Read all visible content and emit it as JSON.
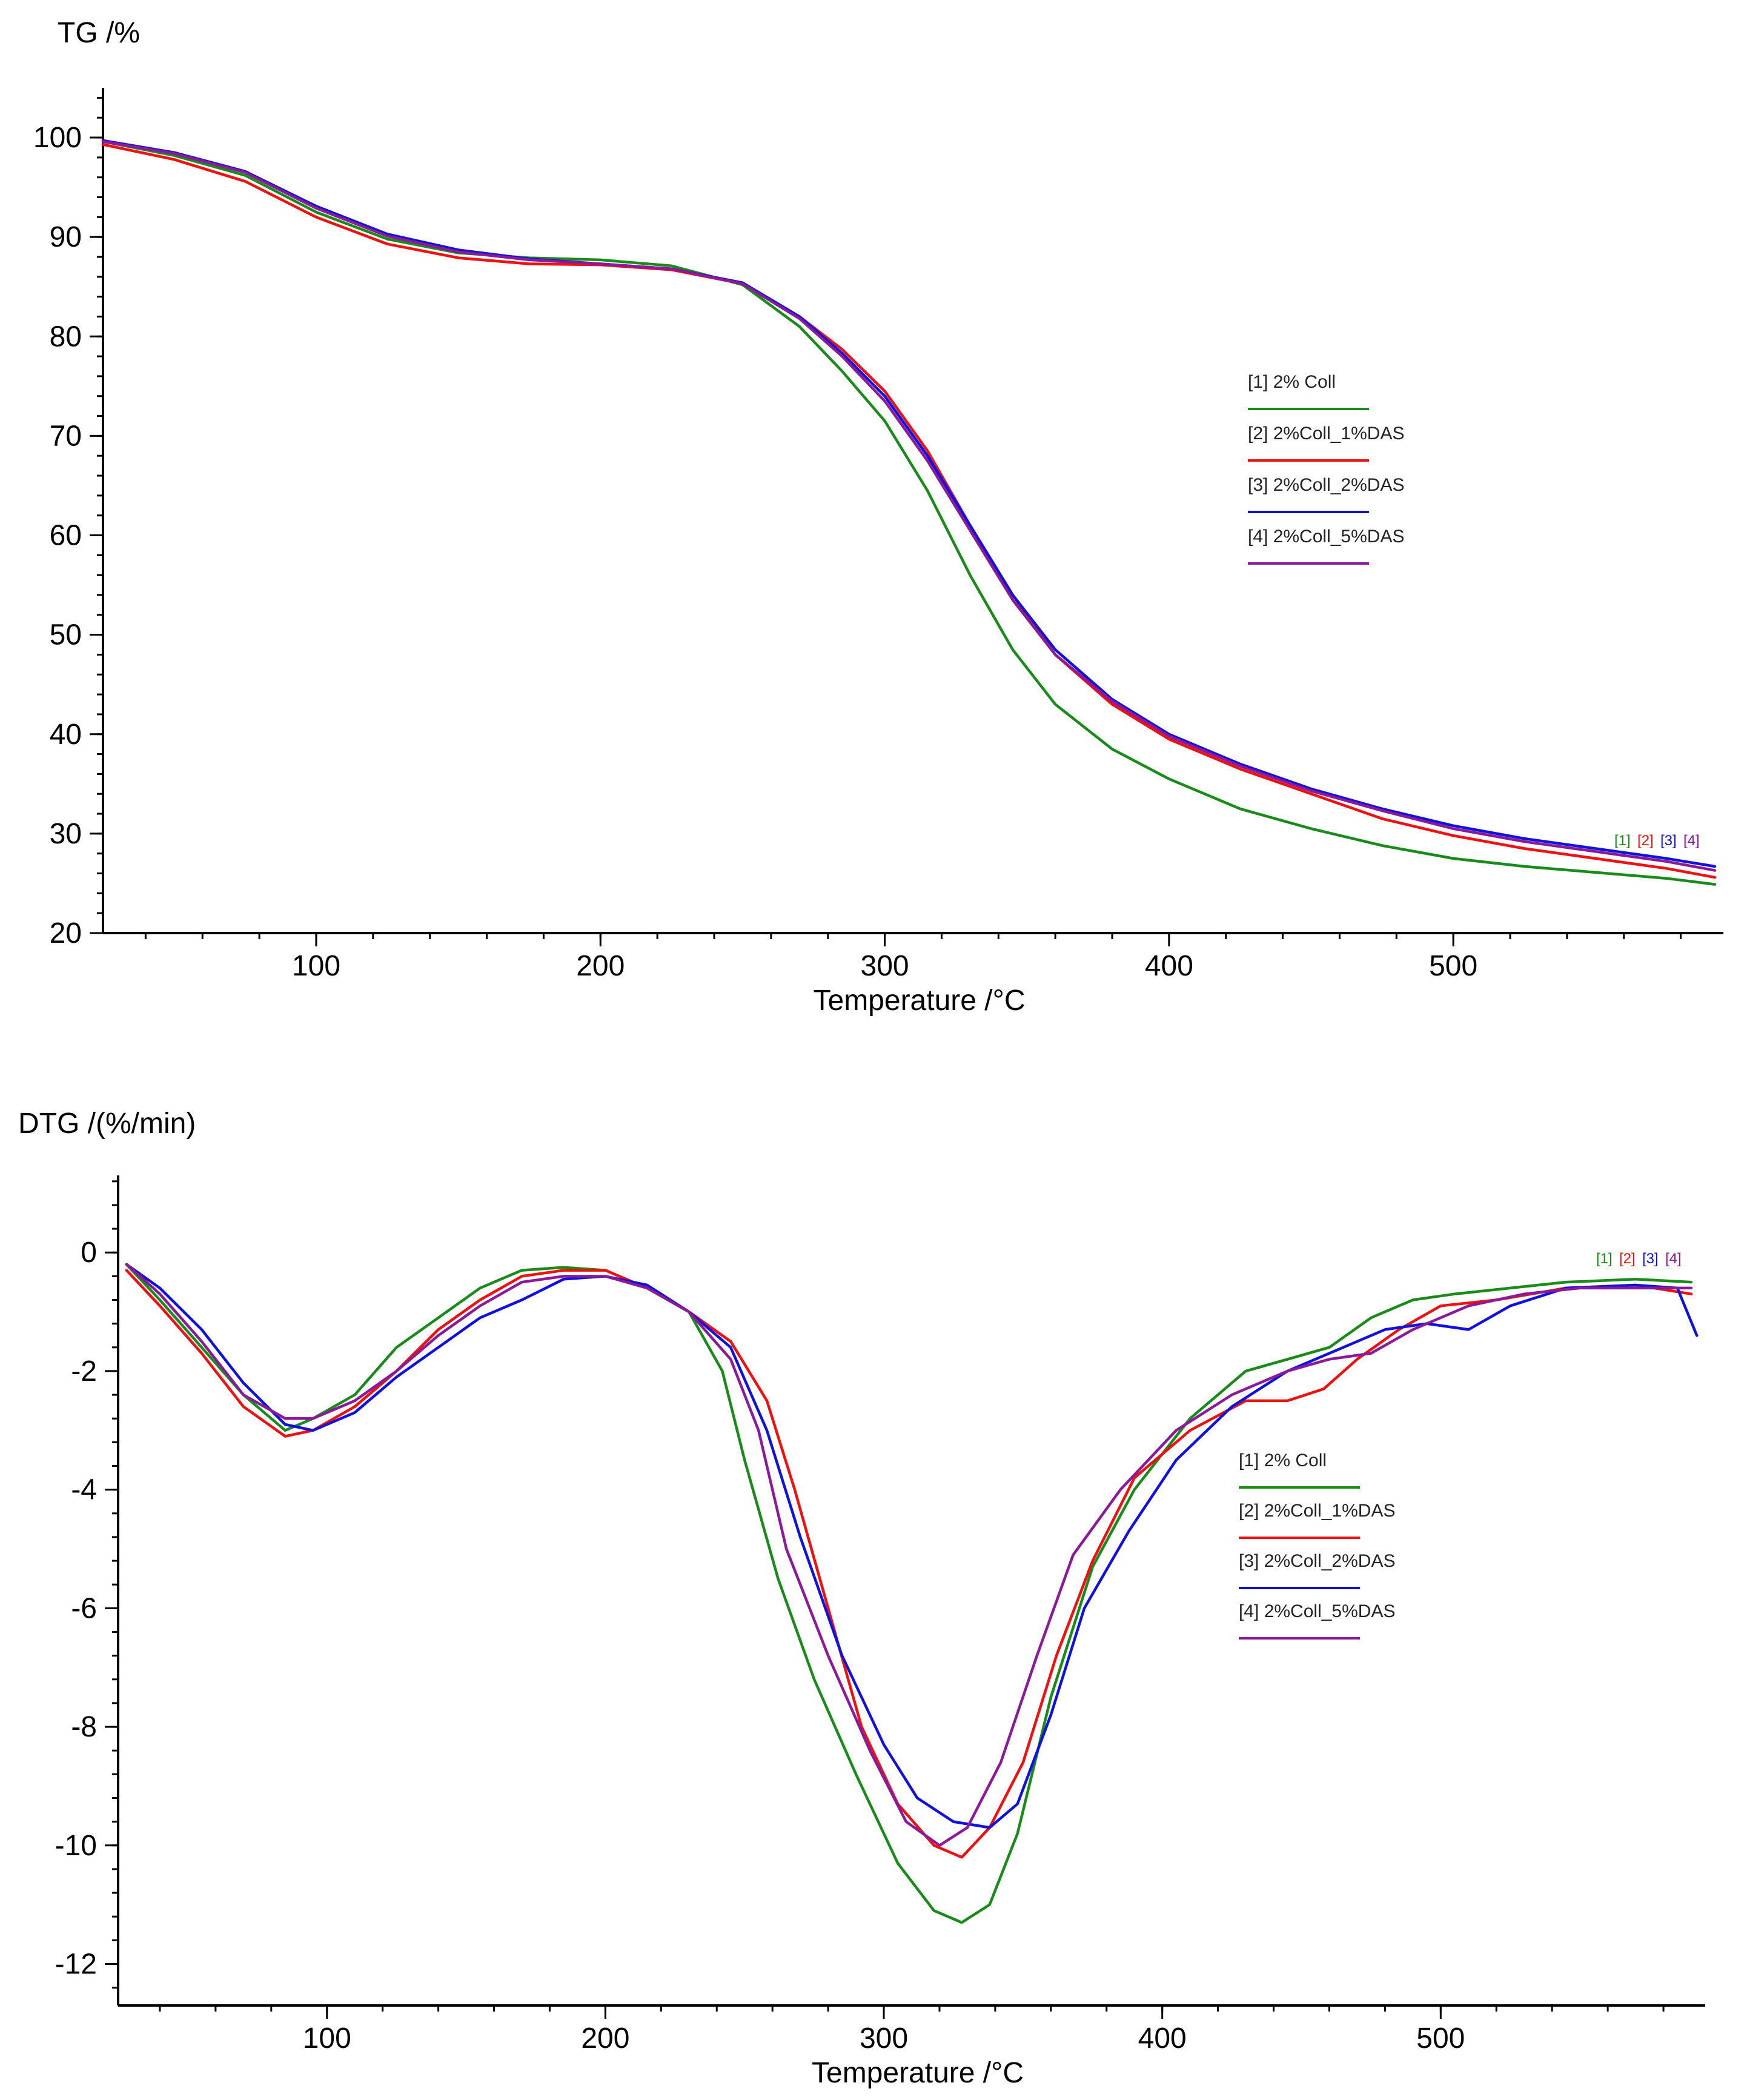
{
  "chart_data": [
    {
      "id": "tg",
      "type": "line",
      "ylabel": "TG /%",
      "xlabel": "Temperature /°C",
      "xlim": [
        25,
        595
      ],
      "ylim": [
        20,
        105
      ],
      "x_ticks": [
        100,
        200,
        300,
        400,
        500
      ],
      "y_ticks": [
        20,
        30,
        40,
        50,
        60,
        70,
        80,
        90,
        100
      ],
      "legend_placement": "center-right",
      "series": [
        {
          "name": "[1] 2% Coll",
          "tag": "[1]",
          "color": "#1a8a1a",
          "points": [
            [
              25,
              99.6
            ],
            [
              50,
              98.2
            ],
            [
              75,
              96.2
            ],
            [
              100,
              92.5
            ],
            [
              125,
              89.8
            ],
            [
              150,
              88.4
            ],
            [
              175,
              87.9
            ],
            [
              200,
              87.7
            ],
            [
              225,
              87.1
            ],
            [
              250,
              85.2
            ],
            [
              270,
              81
            ],
            [
              285,
              76.5
            ],
            [
              300,
              71.5
            ],
            [
              315,
              64.5
            ],
            [
              330,
              56
            ],
            [
              345,
              48.5
            ],
            [
              360,
              43
            ],
            [
              380,
              38.5
            ],
            [
              400,
              35.5
            ],
            [
              425,
              32.5
            ],
            [
              450,
              30.5
            ],
            [
              475,
              28.8
            ],
            [
              500,
              27.5
            ],
            [
              525,
              26.7
            ],
            [
              550,
              26.1
            ],
            [
              575,
              25.5
            ],
            [
              592,
              24.9
            ]
          ]
        },
        {
          "name": "[2] 2%Coll_1%DAS",
          "tag": "[2]",
          "color": "#ee1111",
          "points": [
            [
              25,
              99.3
            ],
            [
              50,
              97.8
            ],
            [
              75,
              95.6
            ],
            [
              100,
              92
            ],
            [
              125,
              89.3
            ],
            [
              150,
              87.9
            ],
            [
              175,
              87.3
            ],
            [
              200,
              87.2
            ],
            [
              225,
              86.7
            ],
            [
              250,
              85.3
            ],
            [
              270,
              82
            ],
            [
              285,
              78.7
            ],
            [
              300,
              74.5
            ],
            [
              315,
              68.5
            ],
            [
              330,
              61
            ],
            [
              345,
              54
            ],
            [
              360,
              48
            ],
            [
              380,
              43
            ],
            [
              400,
              39.5
            ],
            [
              425,
              36.5
            ],
            [
              450,
              34
            ],
            [
              475,
              31.5
            ],
            [
              500,
              29.8
            ],
            [
              525,
              28.5
            ],
            [
              550,
              27.5
            ],
            [
              575,
              26.5
            ],
            [
              592,
              25.6
            ]
          ]
        },
        {
          "name": "[3] 2%Coll_2%DAS",
          "tag": "[3]",
          "color": "#1111dd",
          "points": [
            [
              25,
              99.7
            ],
            [
              50,
              98.5
            ],
            [
              75,
              96.6
            ],
            [
              100,
              93.1
            ],
            [
              125,
              90.3
            ],
            [
              150,
              88.7
            ],
            [
              175,
              87.8
            ],
            [
              200,
              87.3
            ],
            [
              225,
              86.8
            ],
            [
              250,
              85.4
            ],
            [
              270,
              82
            ],
            [
              285,
              78.3
            ],
            [
              300,
              74
            ],
            [
              315,
              68
            ],
            [
              330,
              61
            ],
            [
              345,
              54
            ],
            [
              360,
              48.5
            ],
            [
              380,
              43.5
            ],
            [
              400,
              40
            ],
            [
              425,
              37
            ],
            [
              450,
              34.5
            ],
            [
              475,
              32.5
            ],
            [
              500,
              30.8
            ],
            [
              525,
              29.5
            ],
            [
              550,
              28.5
            ],
            [
              575,
              27.5
            ],
            [
              592,
              26.7
            ]
          ]
        },
        {
          "name": "[4] 2%Coll_5%DAS",
          "tag": "[4]",
          "color": "#8a1a9a",
          "points": [
            [
              25,
              99.6
            ],
            [
              50,
              98.4
            ],
            [
              75,
              96.5
            ],
            [
              100,
              92.9
            ],
            [
              125,
              90.1
            ],
            [
              150,
              88.5
            ],
            [
              175,
              87.7
            ],
            [
              200,
              87.3
            ],
            [
              225,
              86.8
            ],
            [
              250,
              85.3
            ],
            [
              270,
              81.8
            ],
            [
              285,
              78
            ],
            [
              300,
              73.5
            ],
            [
              315,
              67.5
            ],
            [
              330,
              60.5
            ],
            [
              345,
              53.5
            ],
            [
              360,
              48
            ],
            [
              380,
              43.3
            ],
            [
              400,
              39.8
            ],
            [
              425,
              36.8
            ],
            [
              450,
              34.3
            ],
            [
              475,
              32.3
            ],
            [
              500,
              30.5
            ],
            [
              525,
              29.2
            ],
            [
              550,
              28.2
            ],
            [
              575,
              27.2
            ],
            [
              592,
              26.3
            ]
          ]
        }
      ]
    },
    {
      "id": "dtg",
      "type": "line",
      "ylabel": "DTG /(%/min)",
      "xlabel": "Temperature /°C",
      "xlim": [
        25,
        595
      ],
      "ylim": [
        -12.7,
        1.3
      ],
      "x_ticks": [
        100,
        200,
        300,
        400,
        500
      ],
      "y_ticks": [
        0,
        -2,
        -4,
        -6,
        -8,
        -10,
        -12
      ],
      "legend_placement": "center-right",
      "series": [
        {
          "name": "[1] 2% Coll",
          "tag": "[1]",
          "color": "#1a8a1a",
          "points": [
            [
              28,
              -0.2
            ],
            [
              40,
              -0.8
            ],
            [
              55,
              -1.6
            ],
            [
              70,
              -2.4
            ],
            [
              85,
              -3
            ],
            [
              95,
              -2.8
            ],
            [
              110,
              -2.4
            ],
            [
              125,
              -1.6
            ],
            [
              140,
              -1.1
            ],
            [
              155,
              -0.6
            ],
            [
              170,
              -0.3
            ],
            [
              185,
              -0.25
            ],
            [
              200,
              -0.3
            ],
            [
              215,
              -0.6
            ],
            [
              230,
              -1
            ],
            [
              242,
              -2
            ],
            [
              250,
              -3.5
            ],
            [
              262,
              -5.5
            ],
            [
              275,
              -7.2
            ],
            [
              290,
              -8.8
            ],
            [
              305,
              -10.3
            ],
            [
              318,
              -11.1
            ],
            [
              328,
              -11.3
            ],
            [
              338,
              -11
            ],
            [
              348,
              -9.8
            ],
            [
              360,
              -7.5
            ],
            [
              375,
              -5.3
            ],
            [
              390,
              -4
            ],
            [
              410,
              -2.8
            ],
            [
              430,
              -2
            ],
            [
              445,
              -1.8
            ],
            [
              460,
              -1.6
            ],
            [
              475,
              -1.1
            ],
            [
              490,
              -0.8
            ],
            [
              505,
              -0.7
            ],
            [
              525,
              -0.6
            ],
            [
              545,
              -0.5
            ],
            [
              570,
              -0.45
            ],
            [
              590,
              -0.5
            ]
          ]
        },
        {
          "name": "[2] 2%Coll_1%DAS",
          "tag": "[2]",
          "color": "#ee1111",
          "points": [
            [
              28,
              -0.3
            ],
            [
              40,
              -0.9
            ],
            [
              55,
              -1.7
            ],
            [
              70,
              -2.6
            ],
            [
              85,
              -3.1
            ],
            [
              95,
              -3
            ],
            [
              110,
              -2.6
            ],
            [
              125,
              -2
            ],
            [
              140,
              -1.3
            ],
            [
              155,
              -0.8
            ],
            [
              170,
              -0.4
            ],
            [
              185,
              -0.3
            ],
            [
              200,
              -0.3
            ],
            [
              215,
              -0.6
            ],
            [
              230,
              -1
            ],
            [
              245,
              -1.5
            ],
            [
              258,
              -2.5
            ],
            [
              268,
              -4
            ],
            [
              280,
              -6
            ],
            [
              292,
              -8
            ],
            [
              305,
              -9.3
            ],
            [
              318,
              -10
            ],
            [
              328,
              -10.2
            ],
            [
              338,
              -9.7
            ],
            [
              350,
              -8.6
            ],
            [
              362,
              -6.8
            ],
            [
              375,
              -5.2
            ],
            [
              390,
              -3.8
            ],
            [
              410,
              -3
            ],
            [
              430,
              -2.5
            ],
            [
              445,
              -2.5
            ],
            [
              458,
              -2.3
            ],
            [
              470,
              -1.8
            ],
            [
              485,
              -1.3
            ],
            [
              500,
              -0.9
            ],
            [
              520,
              -0.8
            ],
            [
              545,
              -0.6
            ],
            [
              570,
              -0.55
            ],
            [
              590,
              -0.7
            ]
          ]
        },
        {
          "name": "[3] 2%Coll_2%DAS",
          "tag": "[3]",
          "color": "#1111dd",
          "points": [
            [
              28,
              -0.2
            ],
            [
              40,
              -0.6
            ],
            [
              55,
              -1.3
            ],
            [
              70,
              -2.2
            ],
            [
              85,
              -2.9
            ],
            [
              95,
              -3
            ],
            [
              110,
              -2.7
            ],
            [
              125,
              -2.1
            ],
            [
              140,
              -1.6
            ],
            [
              155,
              -1.1
            ],
            [
              170,
              -0.8
            ],
            [
              185,
              -0.45
            ],
            [
              200,
              -0.4
            ],
            [
              215,
              -0.55
            ],
            [
              230,
              -1
            ],
            [
              245,
              -1.6
            ],
            [
              258,
              -3
            ],
            [
              270,
              -4.8
            ],
            [
              285,
              -6.8
            ],
            [
              300,
              -8.3
            ],
            [
              312,
              -9.2
            ],
            [
              325,
              -9.6
            ],
            [
              338,
              -9.7
            ],
            [
              348,
              -9.3
            ],
            [
              360,
              -7.8
            ],
            [
              372,
              -6
            ],
            [
              388,
              -4.7
            ],
            [
              405,
              -3.5
            ],
            [
              425,
              -2.6
            ],
            [
              445,
              -2
            ],
            [
              465,
              -1.6
            ],
            [
              480,
              -1.3
            ],
            [
              495,
              -1.2
            ],
            [
              510,
              -1.3
            ],
            [
              525,
              -0.9
            ],
            [
              545,
              -0.6
            ],
            [
              570,
              -0.55
            ],
            [
              585,
              -0.6
            ],
            [
              592,
              -1.4
            ]
          ]
        },
        {
          "name": "[4] 2%Coll_5%DAS",
          "tag": "[4]",
          "color": "#8a1a9a",
          "points": [
            [
              28,
              -0.2
            ],
            [
              40,
              -0.7
            ],
            [
              55,
              -1.5
            ],
            [
              70,
              -2.4
            ],
            [
              85,
              -2.8
            ],
            [
              95,
              -2.8
            ],
            [
              110,
              -2.5
            ],
            [
              125,
              -2
            ],
            [
              140,
              -1.4
            ],
            [
              155,
              -0.9
            ],
            [
              170,
              -0.5
            ],
            [
              185,
              -0.4
            ],
            [
              200,
              -0.4
            ],
            [
              215,
              -0.6
            ],
            [
              230,
              -1
            ],
            [
              245,
              -1.8
            ],
            [
              255,
              -3
            ],
            [
              265,
              -5
            ],
            [
              280,
              -6.8
            ],
            [
              295,
              -8.4
            ],
            [
              308,
              -9.6
            ],
            [
              320,
              -10
            ],
            [
              330,
              -9.7
            ],
            [
              342,
              -8.6
            ],
            [
              355,
              -6.8
            ],
            [
              368,
              -5.1
            ],
            [
              385,
              -4
            ],
            [
              405,
              -3
            ],
            [
              425,
              -2.4
            ],
            [
              445,
              -2
            ],
            [
              460,
              -1.8
            ],
            [
              475,
              -1.7
            ],
            [
              490,
              -1.3
            ],
            [
              510,
              -0.9
            ],
            [
              530,
              -0.7
            ],
            [
              550,
              -0.6
            ],
            [
              575,
              -0.6
            ],
            [
              590,
              -0.6
            ]
          ]
        }
      ]
    }
  ]
}
